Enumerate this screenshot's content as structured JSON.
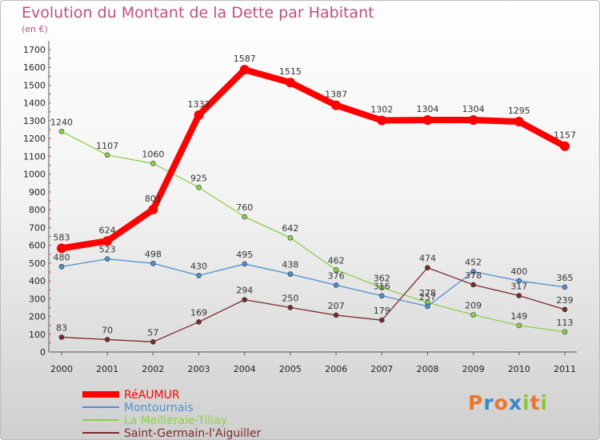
{
  "title": "Evolution du Montant de la Dette par Habitant",
  "unit": "(en €)",
  "logo_text": "Proxiti",
  "colors": {
    "title": "#c0507a",
    "logo": [
      "#e8762d",
      "#3a86c8",
      "#e8762d",
      "#3a86c8",
      "#8cc63f",
      "#e8762d",
      "#8cc63f"
    ]
  },
  "chart_data": {
    "type": "line",
    "x": [
      "2000",
      "2001",
      "2002",
      "2003",
      "2004",
      "2005",
      "2006",
      "2007",
      "2008",
      "2009",
      "2010",
      "2011"
    ],
    "ylim": [
      0,
      1700
    ],
    "yticks": [
      0,
      100,
      200,
      300,
      400,
      500,
      600,
      700,
      800,
      900,
      1000,
      1100,
      1200,
      1300,
      1400,
      1500,
      1600,
      1700
    ],
    "grid": false,
    "legend_position": "bottom-left",
    "series": [
      {
        "name": "RéAUMUR",
        "color": "#ff0000",
        "emphasis": true,
        "values": [
          583,
          624,
          801,
          1332,
          1587,
          1515,
          1387,
          1302,
          1304,
          1304,
          1295,
          1157
        ],
        "labels": [
          "583",
          "624",
          "801",
          "1332",
          "1587",
          "1515",
          "1387",
          "1302",
          "1304",
          "1304",
          "1295",
          "1157"
        ]
      },
      {
        "name": "Montournais",
        "color": "#4f8fcf",
        "emphasis": false,
        "values": [
          480,
          523,
          498,
          430,
          495,
          438,
          376,
          316,
          257,
          452,
          400,
          365
        ],
        "labels": [
          "480",
          "523",
          "498",
          "430",
          "495",
          "438",
          "376",
          "316",
          "257",
          "452",
          "400",
          "365"
        ]
      },
      {
        "name": "La Meilleraie-Tillay",
        "color": "#8cd14a",
        "emphasis": false,
        "values": [
          1240,
          1107,
          1060,
          925,
          760,
          642,
          462,
          362,
          278,
          209,
          149,
          113
        ],
        "labels": [
          "1240",
          "1107",
          "1060",
          "925",
          "760",
          "642",
          "462",
          "362",
          "278",
          "209",
          "149",
          "113"
        ]
      },
      {
        "name": "Saint-Germain-l'Aiguiller",
        "color": "#7a2a2a",
        "emphasis": false,
        "values": [
          83,
          70,
          57,
          169,
          294,
          250,
          207,
          179,
          474,
          378,
          317,
          239
        ],
        "labels": [
          "83",
          "70",
          "57",
          "169",
          "294",
          "250",
          "207",
          "179",
          "474",
          "378",
          "317",
          "239"
        ]
      }
    ]
  }
}
